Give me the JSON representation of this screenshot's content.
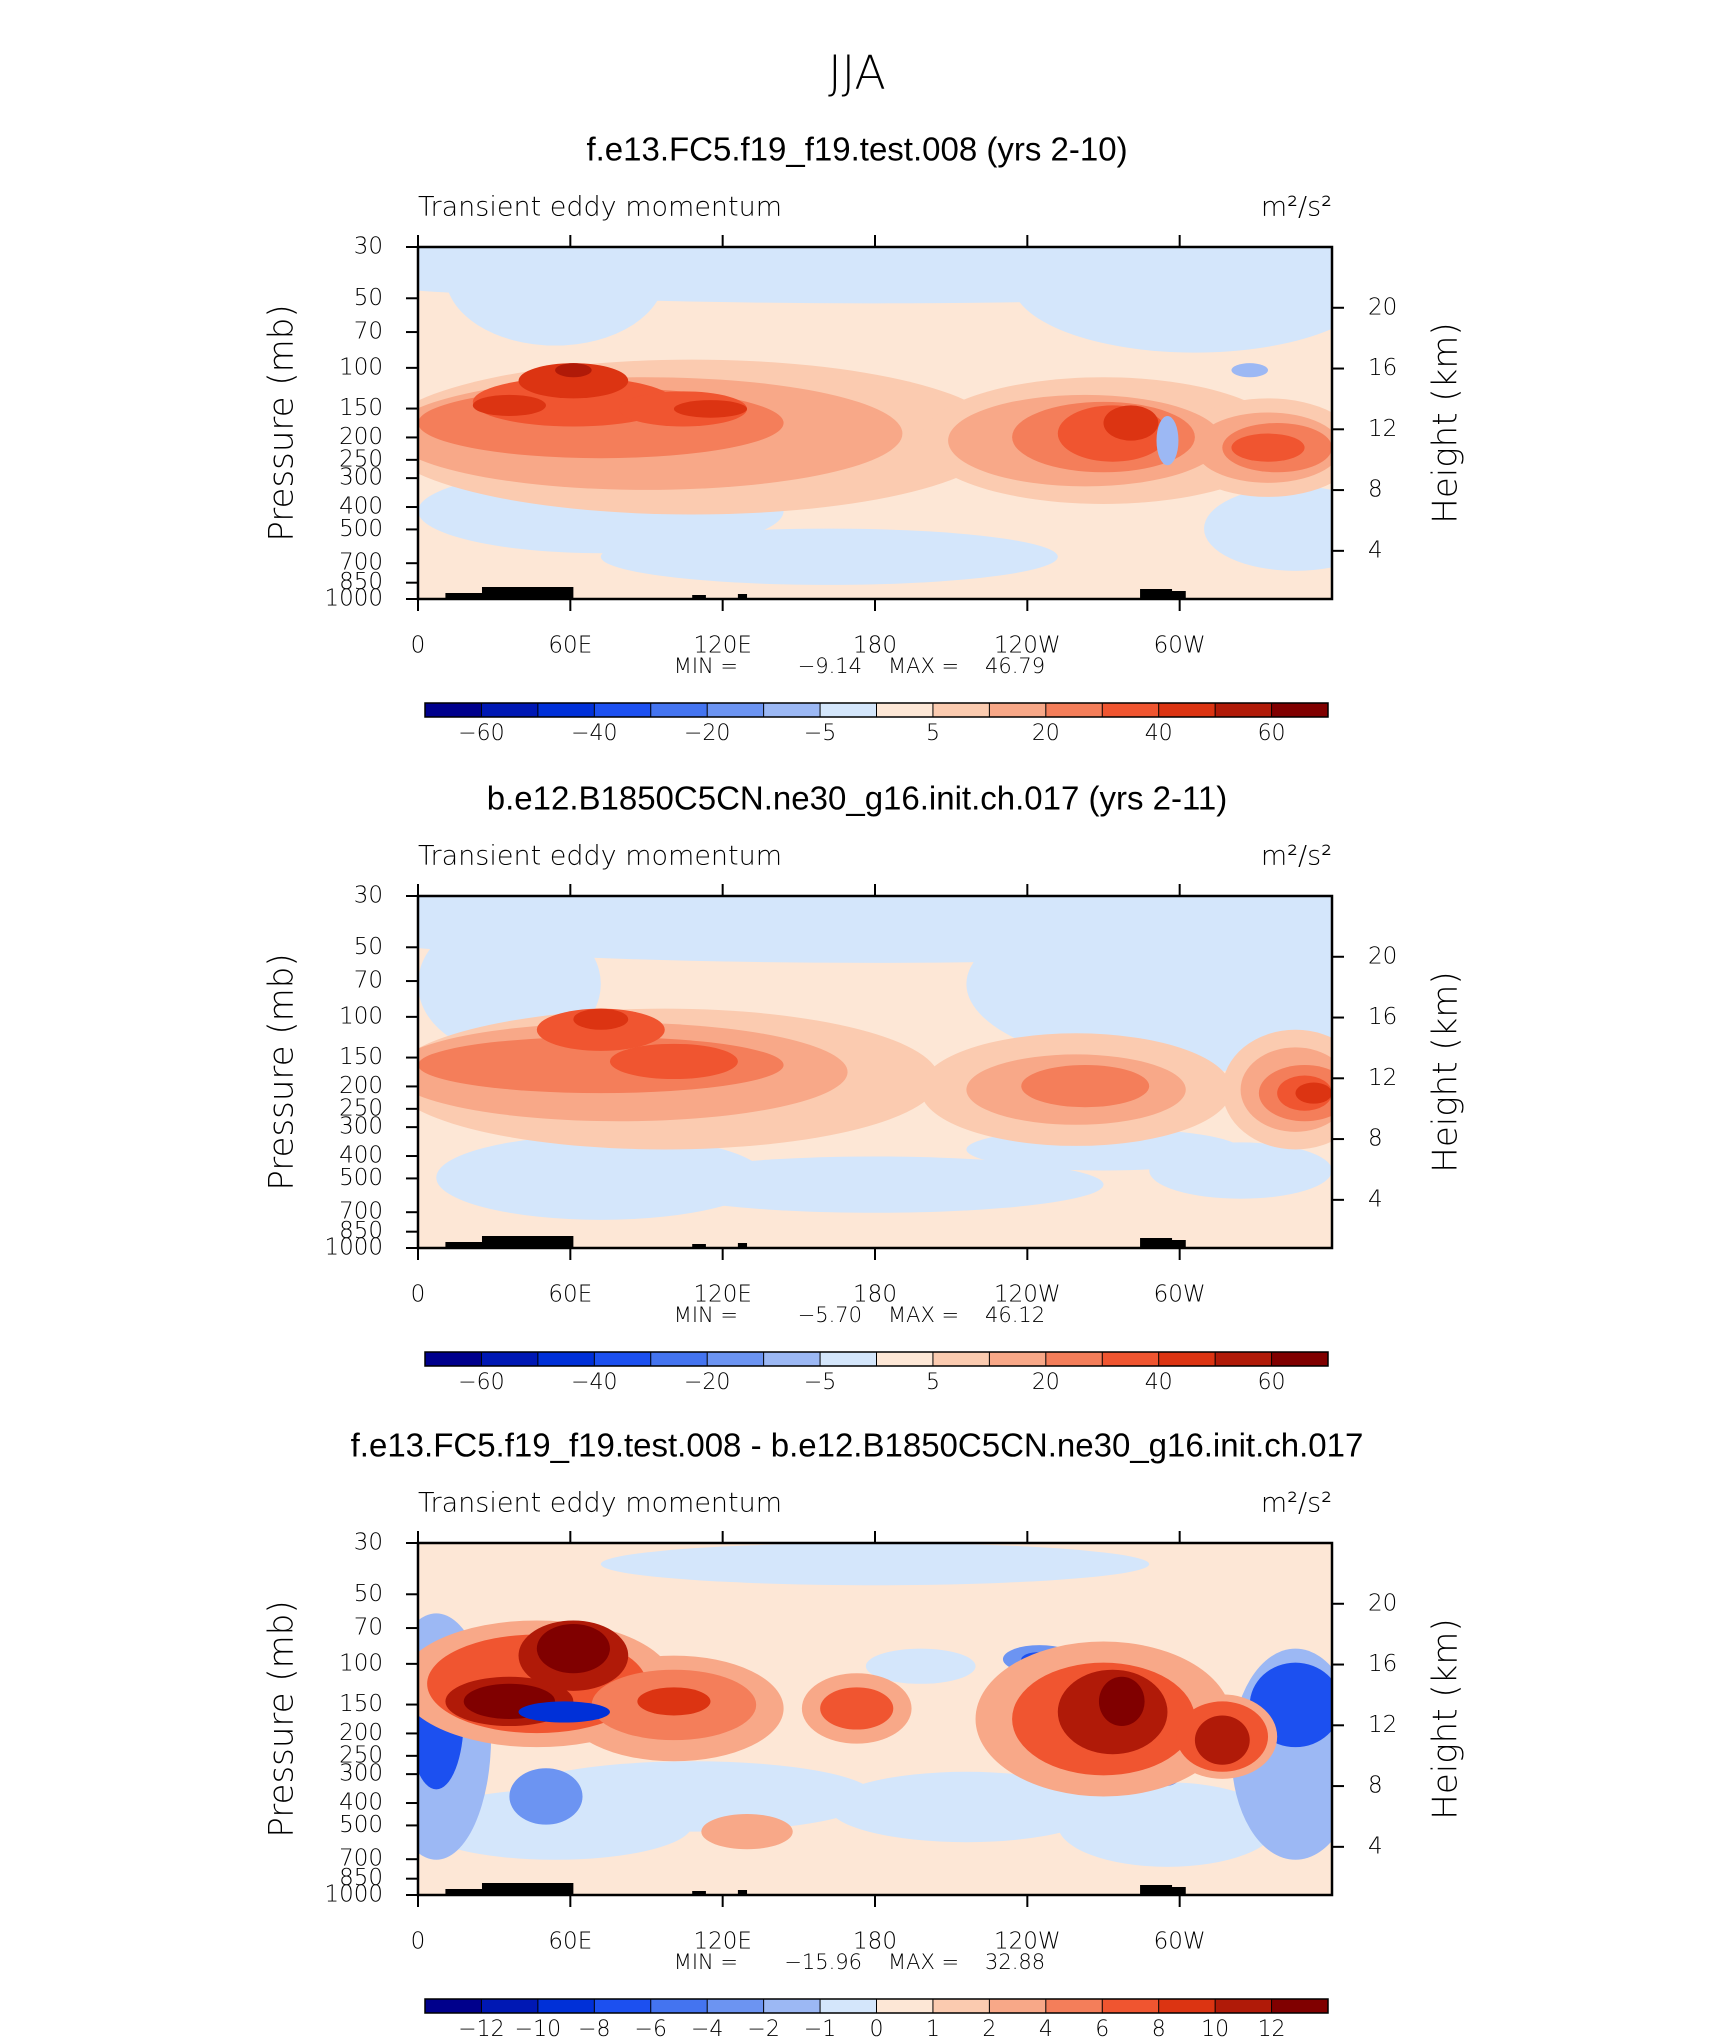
{
  "title": "JJA",
  "chart_data": [
    {
      "type": "contour",
      "title": "f.e13.FC5.f19_f19.test.008 (yrs 2-10)",
      "subtitle": "Transient eddy momentum",
      "units": "m²/s²",
      "y_label": "Pressure (mb)",
      "y2_label": "Height (km)",
      "log_y": true,
      "ylim": [
        1000,
        30
      ],
      "yticks": [
        30,
        50,
        70,
        100,
        150,
        200,
        250,
        300,
        400,
        500,
        700,
        850,
        1000
      ],
      "y2lim": [
        0.83,
        24.0
      ],
      "y2ticks": [
        4,
        8,
        12,
        16,
        20
      ],
      "xlim": [
        0,
        360
      ],
      "xticks": [
        0,
        {
          "value": 60,
          "label": "60E"
        },
        {
          "value": 120,
          "label": "120E"
        },
        180,
        {
          "value": 240,
          "label": "120W"
        },
        {
          "value": 300,
          "label": "60W"
        }
      ],
      "min_caption": "MIN =",
      "min": {
        "value": -9.14,
        "label": "−9.14"
      },
      "max_caption": "MAX =",
      "max": 46.79,
      "colorbar": {
        "colors": [
          "#00008c",
          "#0018b4",
          "#0030d8",
          "#1c50f0",
          "#4474f0",
          "#6c94f2",
          "#9cb8f4",
          "#d4e6fb",
          "#fde7d6",
          "#fbcbb0",
          "#f8a888",
          "#f47e5a",
          "#f05530",
          "#dc3412",
          "#b01a08",
          "#800000"
        ],
        "levels": [
          -60,
          -50,
          -40,
          -30,
          -20,
          -10,
          -5,
          0,
          5,
          10,
          20,
          30,
          40,
          50,
          60
        ],
        "ticks": [
          {
            "value": -60,
            "label": "−60"
          },
          {
            "value": -40,
            "label": "−40"
          },
          {
            "value": -20,
            "label": "−20"
          },
          {
            "value": -5,
            "label": "−5"
          },
          5,
          20,
          40,
          60
        ]
      }
    },
    {
      "type": "contour",
      "title": "b.e12.B1850C5CN.ne30_g16.init.ch.017 (yrs 2-11)",
      "subtitle": "Transient eddy momentum",
      "units": "m²/s²",
      "y_label": "Pressure (mb)",
      "y2_label": "Height (km)",
      "log_y": true,
      "ylim": [
        1000,
        30
      ],
      "yticks": [
        30,
        50,
        70,
        100,
        150,
        200,
        250,
        300,
        400,
        500,
        700,
        850,
        1000
      ],
      "y2lim": [
        0.83,
        24.0
      ],
      "y2ticks": [
        4,
        8,
        12,
        16,
        20
      ],
      "xlim": [
        0,
        360
      ],
      "xticks": [
        0,
        {
          "value": 60,
          "label": "60E"
        },
        {
          "value": 120,
          "label": "120E"
        },
        180,
        {
          "value": 240,
          "label": "120W"
        },
        {
          "value": 300,
          "label": "60W"
        }
      ],
      "min_caption": "MIN =",
      "min": {
        "value": -5.7,
        "label": "−5.70"
      },
      "max_caption": "MAX =",
      "max": 46.12,
      "colorbar": {
        "colors": [
          "#00008c",
          "#0018b4",
          "#0030d8",
          "#1c50f0",
          "#4474f0",
          "#6c94f2",
          "#9cb8f4",
          "#d4e6fb",
          "#fde7d6",
          "#fbcbb0",
          "#f8a888",
          "#f47e5a",
          "#f05530",
          "#dc3412",
          "#b01a08",
          "#800000"
        ],
        "levels": [
          -60,
          -50,
          -40,
          -30,
          -20,
          -10,
          -5,
          0,
          5,
          10,
          20,
          30,
          40,
          50,
          60
        ],
        "ticks": [
          {
            "value": -60,
            "label": "−60"
          },
          {
            "value": -40,
            "label": "−40"
          },
          {
            "value": -20,
            "label": "−20"
          },
          {
            "value": -5,
            "label": "−5"
          },
          5,
          20,
          40,
          60
        ]
      }
    },
    {
      "type": "contour",
      "title": "f.e13.FC5.f19_f19.test.008 - b.e12.B1850C5CN.ne30_g16.init.ch.017",
      "subtitle": "Transient eddy momentum",
      "units": "m²/s²",
      "y_label": "Pressure (mb)",
      "y2_label": "Height (km)",
      "log_y": true,
      "ylim": [
        1000,
        30
      ],
      "yticks": [
        30,
        50,
        70,
        100,
        150,
        200,
        250,
        300,
        400,
        500,
        700,
        850,
        1000
      ],
      "y2lim": [
        0.83,
        24.0
      ],
      "y2ticks": [
        4,
        8,
        12,
        16,
        20
      ],
      "xlim": [
        0,
        360
      ],
      "xticks": [
        0,
        {
          "value": 60,
          "label": "60E"
        },
        {
          "value": 120,
          "label": "120E"
        },
        180,
        {
          "value": 240,
          "label": "120W"
        },
        {
          "value": 300,
          "label": "60W"
        }
      ],
      "min_caption": "MIN =",
      "min": {
        "value": -15.96,
        "label": "−15.96"
      },
      "max_caption": "MAX =",
      "max": 32.88,
      "colorbar": {
        "colors": [
          "#00008c",
          "#0018b4",
          "#0030d8",
          "#1c50f0",
          "#4474f0",
          "#6c94f2",
          "#9cb8f4",
          "#d4e6fb",
          "#fde7d6",
          "#fbcbb0",
          "#f8a888",
          "#f47e5a",
          "#f05530",
          "#dc3412",
          "#b01a08",
          "#800000"
        ],
        "levels": [
          -12,
          -10,
          -8,
          -6,
          -4,
          -2,
          -1,
          0,
          1,
          2,
          4,
          6,
          8,
          10,
          12
        ],
        "ticks": [
          {
            "value": -12,
            "label": "−12"
          },
          {
            "value": -10,
            "label": "−10"
          },
          {
            "value": -8,
            "label": "−8"
          },
          {
            "value": -6,
            "label": "−6"
          },
          {
            "value": -4,
            "label": "−4"
          },
          {
            "value": -2,
            "label": "−2"
          },
          {
            "value": -1,
            "label": "−1"
          },
          0,
          1,
          2,
          4,
          6,
          8,
          10,
          12
        ]
      }
    }
  ]
}
